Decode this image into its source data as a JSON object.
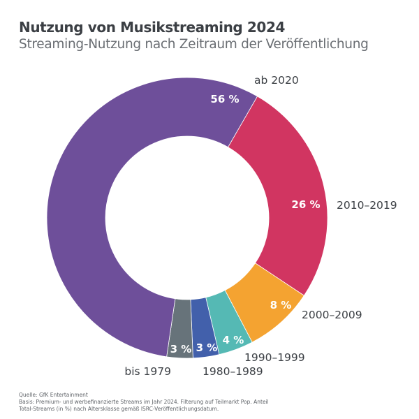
{
  "chart_data": {
    "type": "pie",
    "subtype": "donut",
    "title": "Nutzung von Musikstreaming 2024",
    "subtitle": "Streaming-Nutzung nach Zeitraum der Veröffentlichung",
    "unit": "%",
    "slices": [
      {
        "label": "2010–2019",
        "value": 26,
        "value_label": "26 %",
        "color": "#d13561"
      },
      {
        "label": "2000–2009",
        "value": 8,
        "value_label": "8 %",
        "color": "#f4a331"
      },
      {
        "label": "1990–1999",
        "value": 4,
        "value_label": "4 %",
        "color": "#55b9b4"
      },
      {
        "label": "1980–1989",
        "value": 3,
        "value_label": "3 %",
        "color": "#4260ab"
      },
      {
        "label": "bis 1979",
        "value": 3,
        "value_label": "3 %",
        "color": "#67737a"
      },
      {
        "label": "ab 2020",
        "value": 56,
        "value_label": "56 %",
        "color": "#6e4f9a"
      }
    ],
    "start_angle_deg": 30,
    "direction": "clockwise"
  },
  "footer": {
    "source": "Quelle: GfK Entertainment",
    "basis_line1": "Basis: Premium- und werbefinanzierte Streams im Jahr 2024. Filterung auf Teilmarkt Pop. Anteil",
    "basis_line2": "Total-Streams (in %) nach Altersklasse gemäß ISRC-Veröffentlichungsdatum."
  }
}
